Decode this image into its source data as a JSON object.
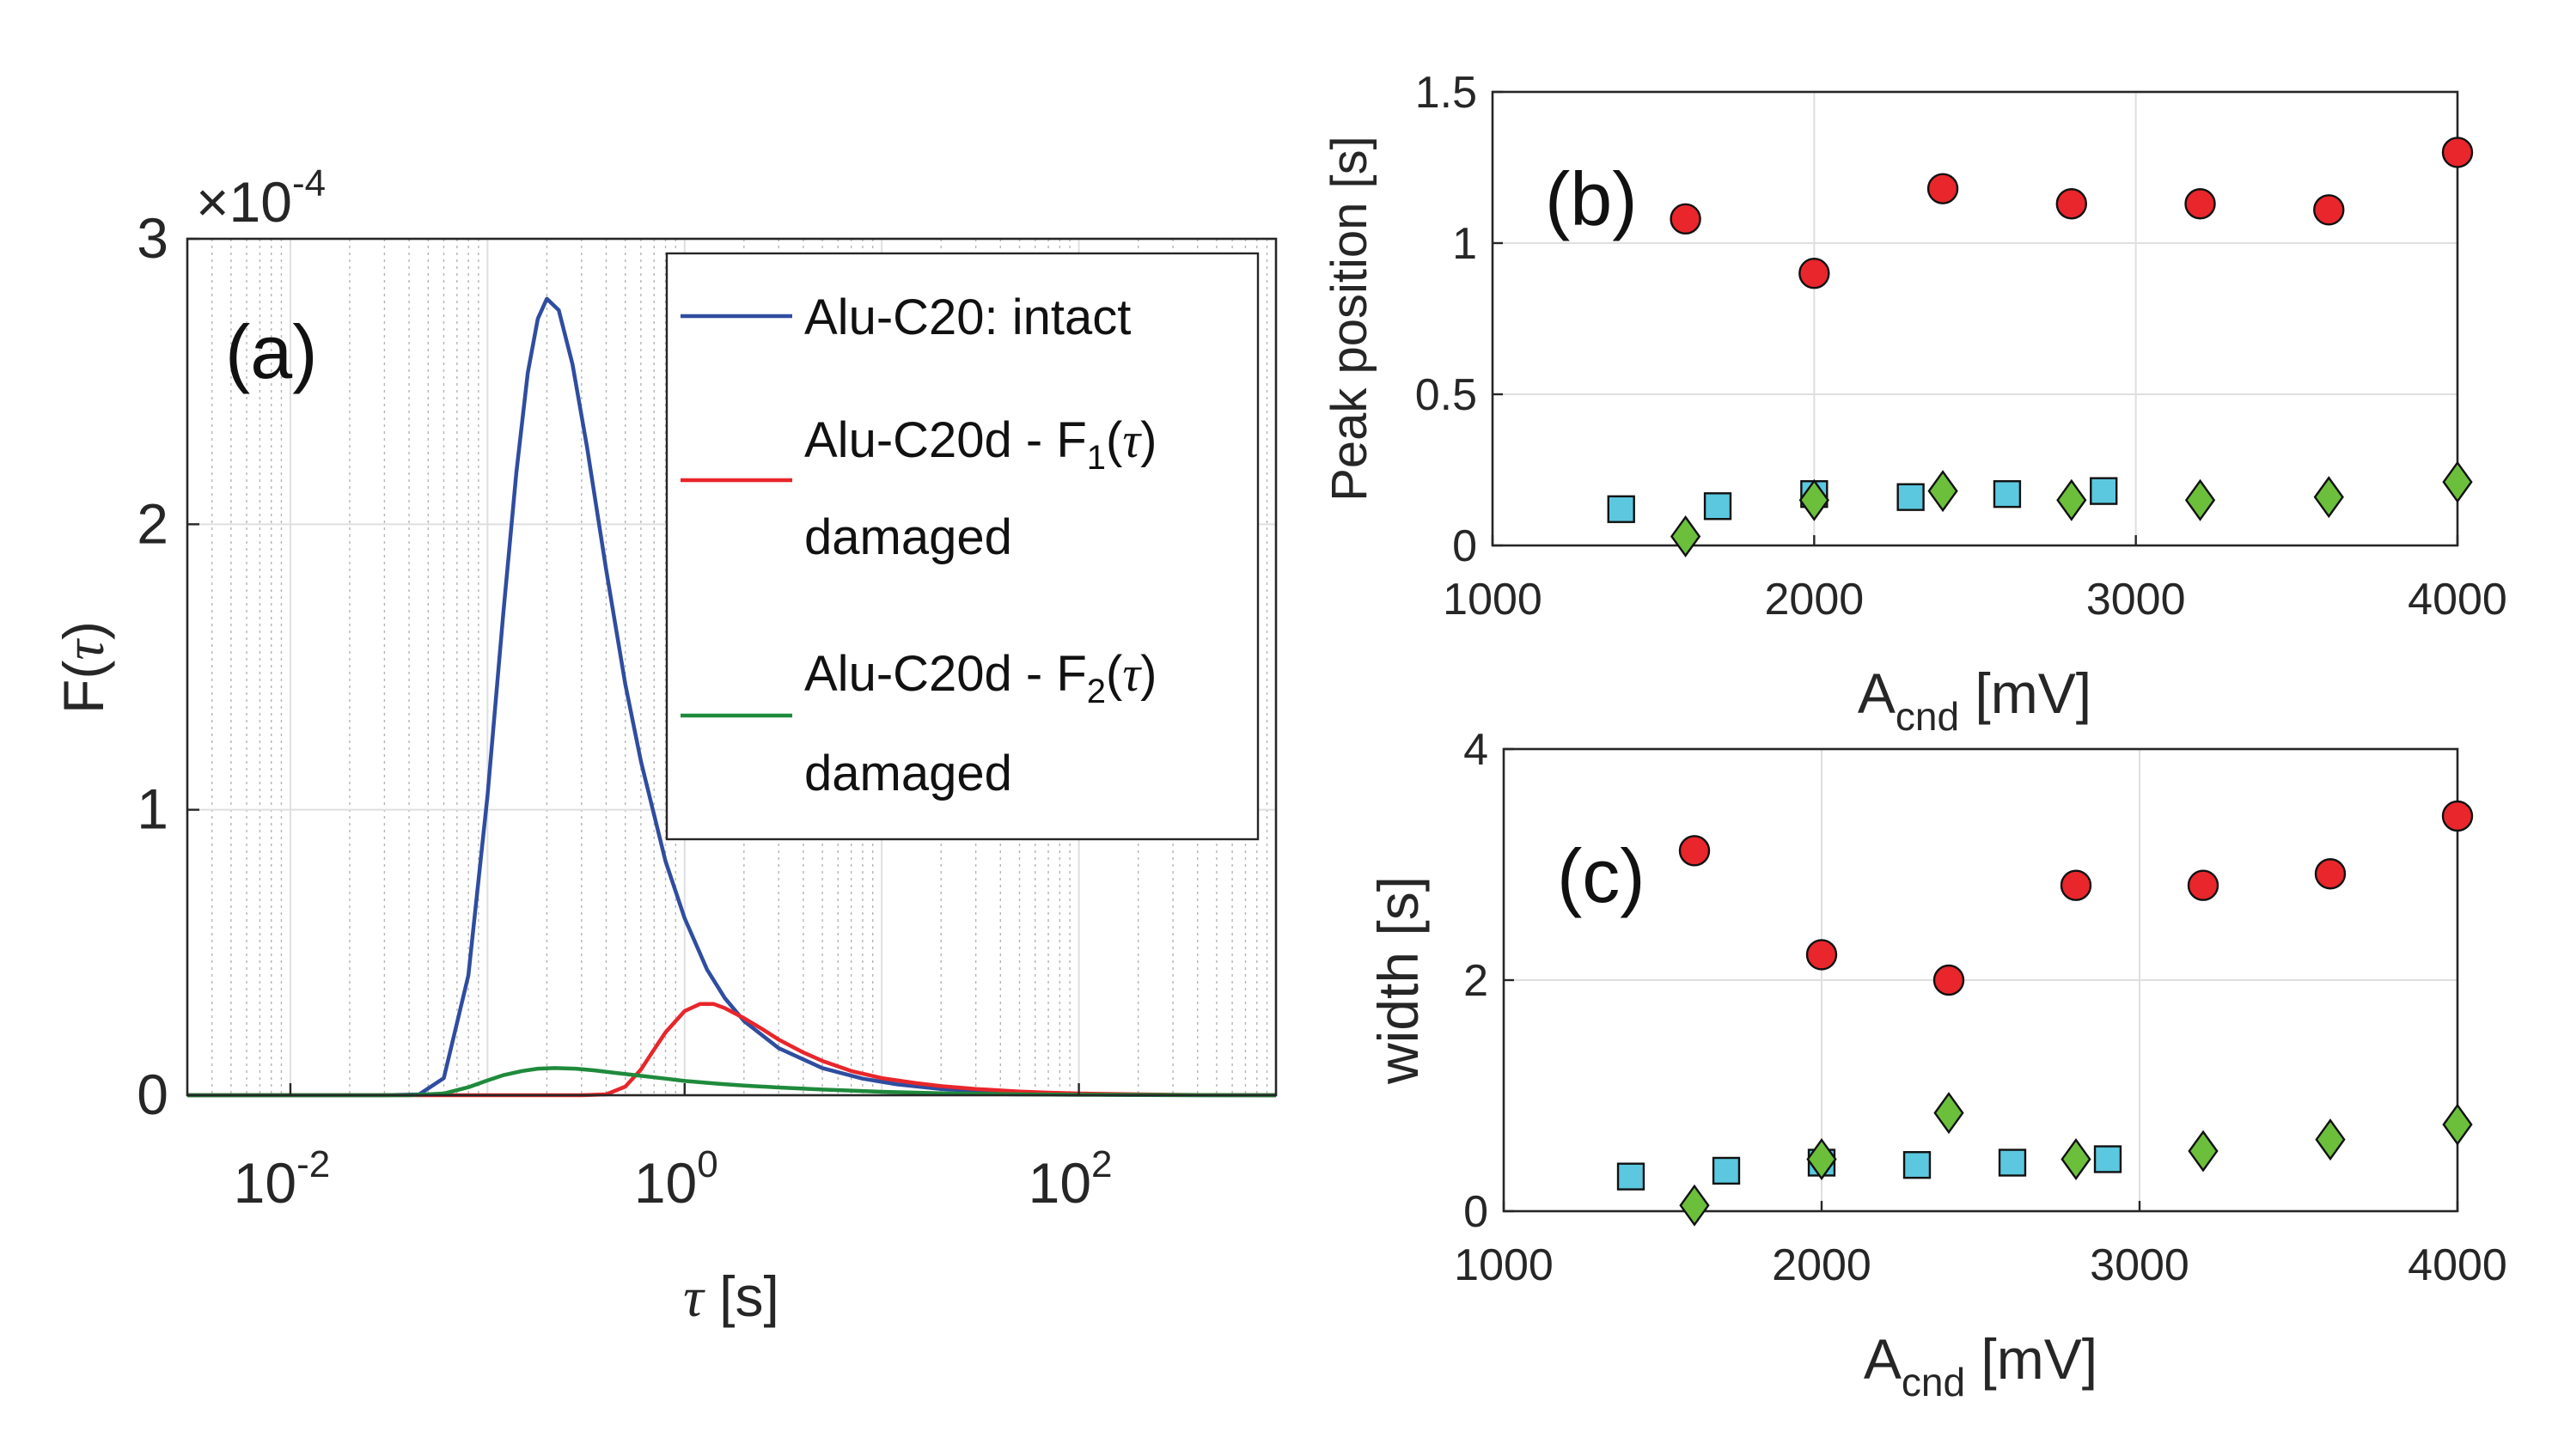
{
  "chart_data": [
    {
      "panel": "(a)",
      "type": "line",
      "xscale": "log",
      "xlim": [
        0.003,
        1000
      ],
      "ylim": [
        0,
        3
      ],
      "xticks": [
        0.01,
        1,
        100
      ],
      "xtick_base": [
        "10",
        "10",
        "10"
      ],
      "xtick_exp": [
        "-2",
        "0",
        "2"
      ],
      "yticks": [
        0,
        1,
        2,
        3
      ],
      "ytick_labels": [
        "0",
        "1",
        "2",
        "3"
      ],
      "exponent_prefix": "×10",
      "exponent_power": "-4",
      "xlabel_symbol": "τ",
      "xlabel_unit": " [s]",
      "ylabel_prefix": "F(",
      "ylabel_symbol": "τ",
      "ylabel_suffix": ")",
      "grid": "major and minor",
      "legend": {
        "placement": "top-right",
        "entries": [
          {
            "text": "Alu-C20: intact",
            "color": "#2f4da0"
          },
          {
            "line1_prefix": "Alu-C20d - F",
            "line1_sub": "1",
            "line1_open": "(",
            "line1_sym": "τ",
            "line1_close": ")",
            "line2": "damaged",
            "color": "#e8262b"
          },
          {
            "line1_prefix": "Alu-C20d - F",
            "line1_sub": "2",
            "line1_open": "(",
            "line1_sym": "τ",
            "line1_close": ")",
            "line2": "damaged",
            "color": "#1f8a3c"
          }
        ]
      },
      "series": [
        {
          "name": "Alu-C20: intact",
          "color": "#2f4da0",
          "x": [
            0.003,
            0.01,
            0.03,
            0.045,
            0.06,
            0.08,
            0.1,
            0.12,
            0.14,
            0.16,
            0.18,
            0.2,
            0.23,
            0.27,
            0.32,
            0.4,
            0.5,
            0.6,
            0.8,
            1,
            1.3,
            1.6,
            2,
            3,
            5,
            8,
            12,
            20,
            40,
            70,
            100,
            200,
            500,
            1000
          ],
          "y": [
            0,
            0,
            0,
            0.003,
            0.06,
            0.42,
            1.05,
            1.68,
            2.18,
            2.53,
            2.72,
            2.79,
            2.75,
            2.56,
            2.27,
            1.84,
            1.44,
            1.17,
            0.82,
            0.62,
            0.44,
            0.34,
            0.26,
            0.165,
            0.095,
            0.058,
            0.038,
            0.022,
            0.01,
            0.005,
            0.003,
            0.001,
            0,
            0
          ]
        },
        {
          "name": "Alu-C20d - F1(τ) damaged",
          "color": "#e8262b",
          "x": [
            0.003,
            0.3,
            0.4,
            0.5,
            0.6,
            0.7,
            0.8,
            1,
            1.2,
            1.4,
            1.6,
            2,
            2.5,
            3,
            4,
            5,
            7,
            10,
            15,
            20,
            30,
            50,
            70,
            100,
            200,
            400,
            1000
          ],
          "y": [
            0,
            0,
            0.003,
            0.03,
            0.09,
            0.16,
            0.22,
            0.295,
            0.32,
            0.32,
            0.305,
            0.27,
            0.23,
            0.195,
            0.15,
            0.12,
            0.085,
            0.06,
            0.042,
            0.032,
            0.022,
            0.013,
            0.009,
            0.006,
            0.003,
            0.001,
            0
          ]
        },
        {
          "name": "Alu-C20d - F2(τ) damaged",
          "color": "#1f8a3c",
          "x": [
            0.003,
            0.04,
            0.06,
            0.08,
            0.1,
            0.12,
            0.15,
            0.18,
            0.22,
            0.28,
            0.35,
            0.45,
            0.6,
            0.8,
            1,
            1.5,
            2,
            3,
            5,
            10,
            20,
            50,
            100,
            300,
            1000
          ],
          "y": [
            0,
            0,
            0.006,
            0.028,
            0.052,
            0.07,
            0.085,
            0.093,
            0.095,
            0.093,
            0.087,
            0.078,
            0.068,
            0.058,
            0.05,
            0.04,
            0.034,
            0.027,
            0.02,
            0.012,
            0.007,
            0.003,
            0.0015,
            0.0005,
            0
          ]
        }
      ]
    },
    {
      "panel": "(b)",
      "type": "scatter",
      "xlim": [
        1000,
        4000
      ],
      "ylim": [
        0,
        1.5
      ],
      "xticks": [
        1000,
        2000,
        3000,
        4000
      ],
      "xtick_labels": [
        "1000",
        "2000",
        "3000",
        "4000"
      ],
      "yticks": [
        0,
        0.5,
        1,
        1.5
      ],
      "ytick_labels": [
        "0",
        "0.5",
        "1",
        "1.5"
      ],
      "ylabel": "Peak position [s]",
      "xlabel_main": "A",
      "xlabel_sub": "cnd",
      "xlabel_unit": " [mV]",
      "grid": "major",
      "series": [
        {
          "marker": "circle",
          "color": "#e8262b",
          "x": [
            1600,
            2000,
            2400,
            2800,
            3200,
            3600,
            4000
          ],
          "y": [
            1.08,
            0.9,
            1.18,
            1.13,
            1.13,
            1.11,
            1.3
          ]
        },
        {
          "marker": "square",
          "color": "#5bc8df",
          "x": [
            1400,
            1700,
            2000,
            2300,
            2600,
            2900
          ],
          "y": [
            0.12,
            0.13,
            0.17,
            0.16,
            0.17,
            0.18
          ]
        },
        {
          "marker": "diamond",
          "color": "#6bbf3b",
          "x": [
            1600,
            2000,
            2400,
            2800,
            3200,
            3600,
            4000
          ],
          "y": [
            0.03,
            0.15,
            0.18,
            0.15,
            0.15,
            0.16,
            0.21
          ]
        }
      ]
    },
    {
      "panel": "(c)",
      "type": "scatter",
      "xlim": [
        1000,
        4000
      ],
      "ylim": [
        0,
        4
      ],
      "xticks": [
        1000,
        2000,
        3000,
        4000
      ],
      "xtick_labels": [
        "1000",
        "2000",
        "3000",
        "4000"
      ],
      "yticks": [
        0,
        2,
        4
      ],
      "ytick_labels": [
        "0",
        "2",
        "4"
      ],
      "ylabel": "width [s]",
      "xlabel_main": "A",
      "xlabel_sub": "cnd",
      "xlabel_unit": " [mV]",
      "grid": "major",
      "series": [
        {
          "marker": "circle",
          "color": "#e8262b",
          "x": [
            1600,
            2000,
            2400,
            2800,
            3200,
            3600,
            4000
          ],
          "y": [
            3.12,
            2.22,
            2.0,
            2.82,
            2.82,
            2.92,
            3.42
          ]
        },
        {
          "marker": "square",
          "color": "#5bc8df",
          "x": [
            1400,
            1700,
            2000,
            2300,
            2600,
            2900
          ],
          "y": [
            0.3,
            0.35,
            0.42,
            0.4,
            0.42,
            0.45
          ]
        },
        {
          "marker": "diamond",
          "color": "#6bbf3b",
          "x": [
            1600,
            2000,
            2400,
            2800,
            3200,
            3600,
            4000
          ],
          "y": [
            0.05,
            0.45,
            0.85,
            0.45,
            0.52,
            0.62,
            0.75
          ]
        }
      ]
    }
  ]
}
